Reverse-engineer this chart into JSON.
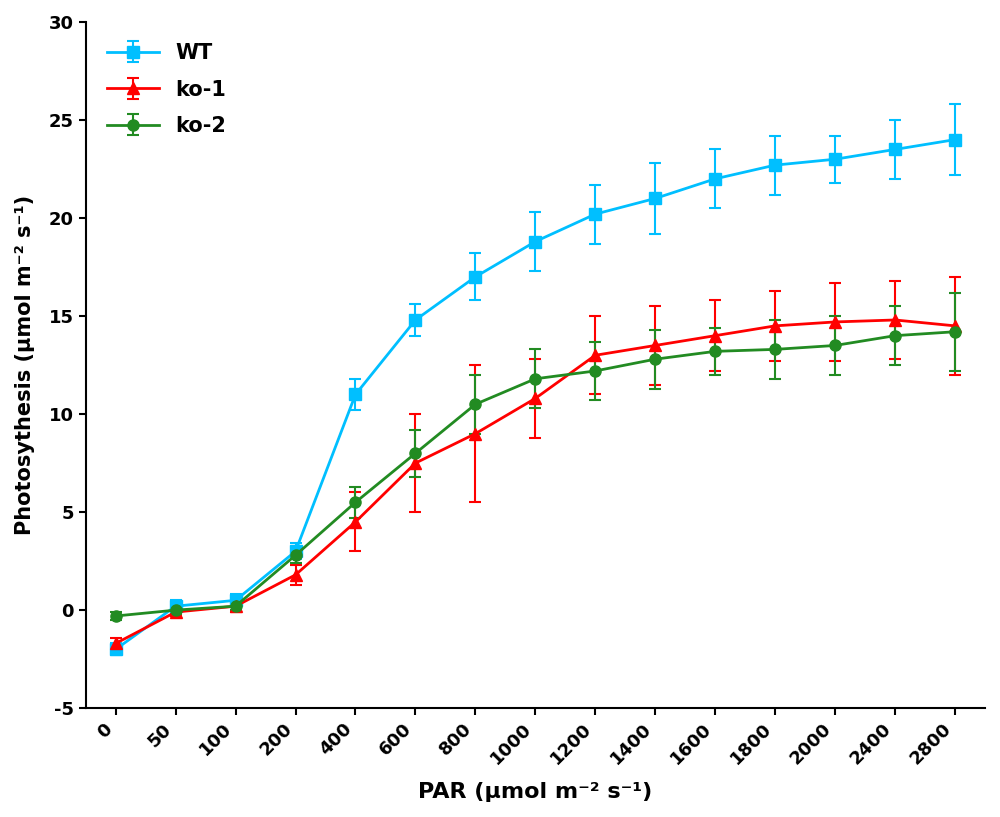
{
  "x_labels": [
    0,
    50,
    100,
    200,
    400,
    600,
    800,
    1000,
    1200,
    1400,
    1600,
    1800,
    2000,
    2400,
    2800
  ],
  "WT_y": [
    -2.0,
    0.2,
    0.5,
    3.0,
    11.0,
    14.8,
    17.0,
    18.8,
    20.2,
    21.0,
    22.0,
    22.7,
    23.0,
    23.5,
    24.0
  ],
  "WT_err": [
    0.3,
    0.3,
    0.3,
    0.4,
    0.8,
    0.8,
    1.2,
    1.5,
    1.5,
    1.8,
    1.5,
    1.5,
    1.2,
    1.5,
    1.8
  ],
  "ko1_y": [
    -1.7,
    -0.1,
    0.2,
    1.8,
    4.5,
    7.5,
    9.0,
    10.8,
    13.0,
    13.5,
    14.0,
    14.5,
    14.7,
    14.8,
    14.5
  ],
  "ko1_err": [
    0.3,
    0.2,
    0.3,
    0.5,
    1.5,
    2.5,
    3.5,
    2.0,
    2.0,
    2.0,
    1.8,
    1.8,
    2.0,
    2.0,
    2.5
  ],
  "ko2_y": [
    -0.3,
    0.0,
    0.2,
    2.8,
    5.5,
    8.0,
    10.5,
    11.8,
    12.2,
    12.8,
    13.2,
    13.3,
    13.5,
    14.0,
    14.2
  ],
  "ko2_err": [
    0.2,
    0.2,
    0.2,
    0.4,
    0.8,
    1.2,
    1.5,
    1.5,
    1.5,
    1.5,
    1.2,
    1.5,
    1.5,
    1.5,
    2.0
  ],
  "xlabel": "PAR (μmol m⁻² s⁻¹)",
  "ylabel": "Photosythesis (μmol m⁻² s⁻¹)",
  "ylim": [
    -5,
    30
  ],
  "yticks": [
    -5,
    0,
    5,
    10,
    15,
    20,
    25,
    30
  ],
  "wt_color": "#00BFFF",
  "ko1_color": "#FF0000",
  "ko2_color": "#228B22",
  "legend_labels": [
    "WT",
    "ko-1",
    "ko-2"
  ],
  "line_width": 2.0,
  "marker_size": 8
}
